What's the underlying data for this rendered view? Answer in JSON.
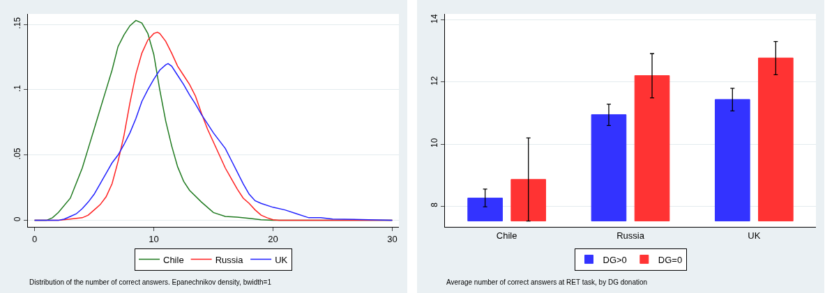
{
  "chart_data": [
    {
      "type": "line",
      "annotations": [
        "Distribution of the number of correct answers. Epanechnikov density, bwidth=1"
      ],
      "xlim": [
        -0.56,
        30.56
      ],
      "ylim": [
        -0.005,
        0.158
      ],
      "xticks": [
        0,
        10,
        20,
        30
      ],
      "yticks": [
        {
          "value": 0,
          "label": "0"
        },
        {
          "value": 0.05,
          "label": ".05"
        },
        {
          "value": 0.1,
          "label": ".1"
        },
        {
          "value": 0.15,
          "label": ".15"
        }
      ],
      "grid": "y",
      "legend": "bottom",
      "marker": "none",
      "line_style": "solid",
      "series": [
        {
          "name": "Chile",
          "color": "#1f7a1f",
          "x": [
            0,
            1,
            1.5,
            2,
            3,
            4,
            4.5,
            5,
            5.5,
            6,
            6.5,
            7,
            7.5,
            8,
            8.5,
            9,
            9.5,
            10,
            10.5,
            11,
            11.5,
            12,
            12.5,
            13,
            14,
            15,
            16,
            17,
            18,
            19,
            20,
            30
          ],
          "values": [
            0,
            0,
            0.002,
            0.006,
            0.017,
            0.04,
            0.055,
            0.07,
            0.085,
            0.1,
            0.115,
            0.133,
            0.142,
            0.149,
            0.153,
            0.151,
            0.143,
            0.127,
            0.1,
            0.076,
            0.057,
            0.041,
            0.03,
            0.023,
            0.014,
            0.006,
            0.003,
            0.0025,
            0.0015,
            0.0005,
            0,
            0
          ]
        },
        {
          "name": "Russia",
          "color": "#ff2020",
          "x": [
            0,
            2,
            3,
            4,
            4.5,
            5,
            5.5,
            6,
            6.5,
            7,
            7.5,
            8,
            8.5,
            9,
            9.5,
            10,
            10.3,
            10.5,
            11,
            11.5,
            12,
            12.5,
            13,
            13.5,
            14,
            14.5,
            15,
            15.5,
            16,
            16.5,
            17,
            17.5,
            18,
            18.5,
            19,
            19.5,
            20,
            20.5,
            30
          ],
          "values": [
            0,
            0,
            0.001,
            0.002,
            0.004,
            0.008,
            0.012,
            0.018,
            0.028,
            0.045,
            0.065,
            0.09,
            0.112,
            0.128,
            0.138,
            0.143,
            0.144,
            0.143,
            0.137,
            0.128,
            0.118,
            0.111,
            0.104,
            0.095,
            0.082,
            0.07,
            0.06,
            0.05,
            0.04,
            0.032,
            0.024,
            0.017,
            0.013,
            0.008,
            0.004,
            0.002,
            0.0005,
            0,
            0
          ]
        },
        {
          "name": "UK",
          "color": "#2020ff",
          "x": [
            0,
            2,
            2.5,
            3,
            3.5,
            4,
            4.5,
            5,
            5.5,
            6,
            6.5,
            7,
            7.5,
            8,
            8.5,
            9,
            9.5,
            10,
            10.5,
            11,
            11.2,
            11.5,
            12,
            12.5,
            13,
            13.5,
            14,
            14.5,
            15,
            15.5,
            16,
            16.5,
            17,
            17.5,
            18,
            18.5,
            19,
            20,
            21,
            22,
            23,
            24,
            25,
            28,
            30
          ],
          "values": [
            0,
            0,
            0.001,
            0.003,
            0.005,
            0.009,
            0.014,
            0.02,
            0.028,
            0.036,
            0.044,
            0.05,
            0.058,
            0.067,
            0.078,
            0.091,
            0.1,
            0.108,
            0.115,
            0.119,
            0.12,
            0.118,
            0.111,
            0.104,
            0.096,
            0.089,
            0.081,
            0.074,
            0.067,
            0.061,
            0.055,
            0.046,
            0.037,
            0.028,
            0.02,
            0.015,
            0.013,
            0.01,
            0.008,
            0.005,
            0.002,
            0.002,
            0.001,
            0.0005,
            0
          ]
        }
      ]
    },
    {
      "type": "bar",
      "annotations": [
        "Average number of correct answers at RET task, by DG donation"
      ],
      "categories": [
        "Chile",
        "Russia",
        "UK"
      ],
      "ylim": [
        7.33,
        14.2
      ],
      "yticks": [
        8,
        10,
        12,
        14
      ],
      "grid": "y",
      "legend": "bottom",
      "series": [
        {
          "name": "DG>0",
          "color": "#3333ff",
          "base": [
            7.52,
            7.52,
            7.52
          ],
          "values": [
            0.74,
            3.43,
            3.92
          ],
          "errors": [
            [
              7.98,
              8.55
            ],
            [
              10.6,
              11.29
            ],
            [
              11.07,
              11.8
            ]
          ]
        },
        {
          "name": "DG=0",
          "color": "#ff3333",
          "base": [
            7.52,
            7.52,
            7.52
          ],
          "values": [
            1.34,
            4.69,
            5.26
          ],
          "errors": [
            [
              7.52,
              10.2
            ],
            [
              11.49,
              12.92
            ],
            [
              12.24,
              13.31
            ]
          ]
        }
      ]
    }
  ]
}
